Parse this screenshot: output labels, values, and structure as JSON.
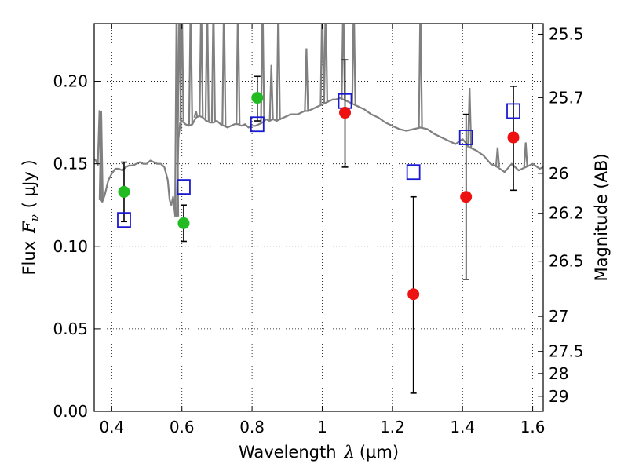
{
  "chart_data": {
    "type": "scatter",
    "title": "",
    "xlabel": "Wavelength",
    "xlabel_math": "λ",
    "xlabel_unit": "(μm)",
    "ylabel": "Flux",
    "ylabel_math": "F",
    "ylabel_math_sub": "ν",
    "ylabel_unit": "( μJy )",
    "ylabel_right": "Magnitude (AB)",
    "xlim": [
      0.35,
      1.63
    ],
    "ylim": [
      0.0,
      0.235
    ],
    "x_ticks": [
      0.4,
      0.6,
      0.8,
      1.0,
      1.2,
      1.4,
      1.6
    ],
    "x_tick_labels": [
      "0.4",
      "0.6",
      "0.8",
      "1",
      "1.2",
      "1.4",
      "1.6"
    ],
    "y_ticks": [
      0.0,
      0.05,
      0.1,
      0.15,
      0.2
    ],
    "y_tick_labels": [
      "0.00",
      "0.05",
      "0.10",
      "0.15",
      "0.20"
    ],
    "right_ticks": [
      {
        "label": "25.5",
        "flux": 0.2286
      },
      {
        "label": "25.7",
        "flux": 0.1901
      },
      {
        "label": "26",
        "flux": 0.1442
      },
      {
        "label": "26.2",
        "flux": 0.12
      },
      {
        "label": "26.5",
        "flux": 0.091
      },
      {
        "label": "27",
        "flux": 0.0575
      },
      {
        "label": "27.5",
        "flux": 0.0363
      },
      {
        "label": "28",
        "flux": 0.0229
      },
      {
        "label": "29",
        "flux": 0.0091
      }
    ],
    "grid": true,
    "colors": {
      "model": "#808080",
      "green": "#22bb22",
      "red": "#ee1111",
      "square": "#1a1ad0",
      "errorbar": "#000000"
    },
    "series": [
      {
        "marker": "square",
        "x": [
          0.435,
          0.605,
          0.815,
          1.065,
          1.26,
          1.41,
          1.545
        ],
        "y": [
          0.116,
          0.136,
          0.174,
          0.188,
          0.145,
          0.166,
          0.182
        ]
      },
      {
        "marker": "circle-green",
        "x": [
          0.435,
          0.605,
          0.815
        ],
        "y": [
          0.133,
          0.114,
          0.19
        ],
        "yerr_low": [
          0.115,
          0.103,
          0.176
        ],
        "yerr_high": [
          0.151,
          0.125,
          0.203
        ]
      },
      {
        "marker": "circle-red",
        "x": [
          1.065,
          1.26,
          1.41,
          1.545
        ],
        "y": [
          0.181,
          0.071,
          0.13,
          0.166
        ],
        "yerr_low": [
          0.148,
          0.011,
          0.08,
          0.134
        ],
        "yerr_high": [
          0.213,
          0.13,
          0.18,
          0.197
        ]
      }
    ],
    "model_spectrum": {
      "x": [
        0.35,
        0.355,
        0.36,
        0.365,
        0.368,
        0.37,
        0.373,
        0.38,
        0.39,
        0.4,
        0.41,
        0.42,
        0.43,
        0.44,
        0.45,
        0.46,
        0.47,
        0.48,
        0.49,
        0.5,
        0.51,
        0.52,
        0.53,
        0.54,
        0.55,
        0.56,
        0.565,
        0.57,
        0.575,
        0.58,
        0.585,
        0.59,
        0.595,
        0.6,
        0.61,
        0.62,
        0.63,
        0.64,
        0.65,
        0.66,
        0.67,
        0.68,
        0.69,
        0.7,
        0.71,
        0.72,
        0.73,
        0.74,
        0.75,
        0.76,
        0.77,
        0.78,
        0.79,
        0.8,
        0.81,
        0.82,
        0.83,
        0.84,
        0.85,
        0.86,
        0.87,
        0.88,
        0.89,
        0.9,
        0.91,
        0.92,
        0.93,
        0.94,
        0.95,
        0.96,
        0.97,
        0.98,
        0.99,
        1.0,
        1.01,
        1.02,
        1.03,
        1.04,
        1.05,
        1.06,
        1.07,
        1.08,
        1.09,
        1.1,
        1.12,
        1.14,
        1.16,
        1.18,
        1.2,
        1.22,
        1.24,
        1.26,
        1.28,
        1.3,
        1.32,
        1.34,
        1.36,
        1.38,
        1.4,
        1.42,
        1.44,
        1.46,
        1.48,
        1.5,
        1.52,
        1.54,
        1.56,
        1.58,
        1.6,
        1.62,
        1.63
      ],
      "y": [
        0.153,
        0.152,
        0.149,
        0.182,
        0.15,
        0.128,
        0.127,
        0.131,
        0.14,
        0.144,
        0.147,
        0.147,
        0.146,
        0.148,
        0.149,
        0.149,
        0.15,
        0.151,
        0.15,
        0.15,
        0.152,
        0.151,
        0.15,
        0.15,
        0.148,
        0.14,
        0.128,
        0.125,
        0.13,
        0.12,
        0.118,
        0.165,
        0.175,
        0.176,
        0.174,
        0.173,
        0.174,
        0.178,
        0.179,
        0.178,
        0.176,
        0.175,
        0.175,
        0.176,
        0.174,
        0.173,
        0.172,
        0.173,
        0.174,
        0.174,
        0.173,
        0.174,
        0.172,
        0.173,
        0.173,
        0.174,
        0.175,
        0.177,
        0.176,
        0.177,
        0.176,
        0.177,
        0.178,
        0.179,
        0.18,
        0.18,
        0.18,
        0.181,
        0.182,
        0.182,
        0.183,
        0.184,
        0.185,
        0.186,
        0.187,
        0.188,
        0.189,
        0.189,
        0.19,
        0.189,
        0.188,
        0.187,
        0.186,
        0.185,
        0.183,
        0.18,
        0.178,
        0.175,
        0.173,
        0.171,
        0.17,
        0.171,
        0.172,
        0.171,
        0.168,
        0.166,
        0.164,
        0.162,
        0.165,
        0.16,
        0.158,
        0.155,
        0.15,
        0.148,
        0.145,
        0.15,
        0.146,
        0.148,
        0.15,
        0.147,
        0.148
      ]
    },
    "model_spikes": [
      {
        "x": 0.37,
        "y": 0.182
      },
      {
        "x": 0.585,
        "y": 0.25
      },
      {
        "x": 0.593,
        "y": 0.25
      },
      {
        "x": 0.6,
        "y": 0.25
      },
      {
        "x": 0.625,
        "y": 0.25
      },
      {
        "x": 0.64,
        "y": 0.182
      },
      {
        "x": 0.655,
        "y": 0.25
      },
      {
        "x": 0.672,
        "y": 0.25
      },
      {
        "x": 0.69,
        "y": 0.25
      },
      {
        "x": 0.72,
        "y": 0.25
      },
      {
        "x": 0.76,
        "y": 0.25
      },
      {
        "x": 0.83,
        "y": 0.25
      },
      {
        "x": 0.855,
        "y": 0.21
      },
      {
        "x": 0.875,
        "y": 0.25
      },
      {
        "x": 0.955,
        "y": 0.22
      },
      {
        "x": 1.0,
        "y": 0.25
      },
      {
        "x": 1.01,
        "y": 0.25
      },
      {
        "x": 1.06,
        "y": 0.25
      },
      {
        "x": 1.09,
        "y": 0.25
      },
      {
        "x": 1.28,
        "y": 0.25
      },
      {
        "x": 1.42,
        "y": 0.196
      },
      {
        "x": 1.5,
        "y": 0.16
      },
      {
        "x": 1.58,
        "y": 0.163
      }
    ]
  }
}
